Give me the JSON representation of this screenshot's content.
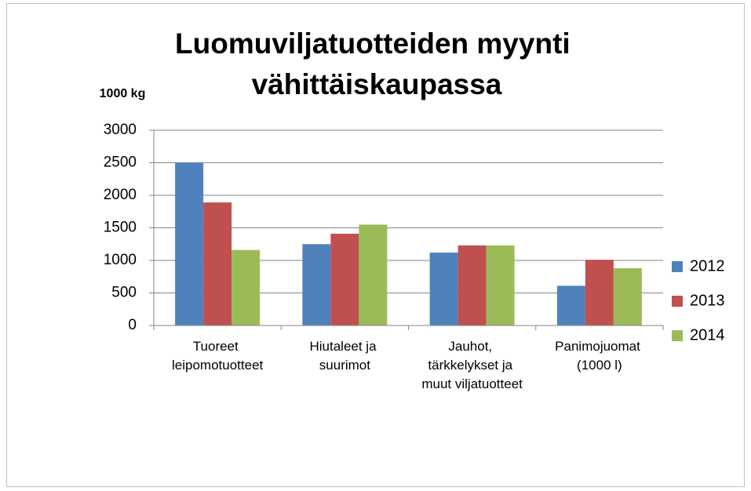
{
  "chart_data": {
    "type": "bar",
    "title": "Luomuviljatuotteiden myynti vähittäiskaupassa",
    "y_axis_label": "1000 kg",
    "categories": [
      "Tuoreet leipomotuotteet",
      "Hiutaleet ja suurimot",
      "Jauhot, tärkkelykset ja muut viljatuotteet",
      "Panimojuomat (1000 l)"
    ],
    "series": [
      {
        "name": "2012",
        "color": "#4f81bd",
        "values": [
          2500,
          1250,
          1120,
          610
        ]
      },
      {
        "name": "2013",
        "color": "#c0504d",
        "values": [
          1890,
          1410,
          1230,
          1010
        ]
      },
      {
        "name": "2014",
        "color": "#9bbb59",
        "values": [
          1160,
          1550,
          1230,
          880
        ]
      }
    ],
    "ylim": [
      0,
      3000
    ],
    "yticks": [
      0,
      500,
      1000,
      1500,
      2000,
      2500,
      3000
    ],
    "grid": true,
    "legend": "right"
  }
}
